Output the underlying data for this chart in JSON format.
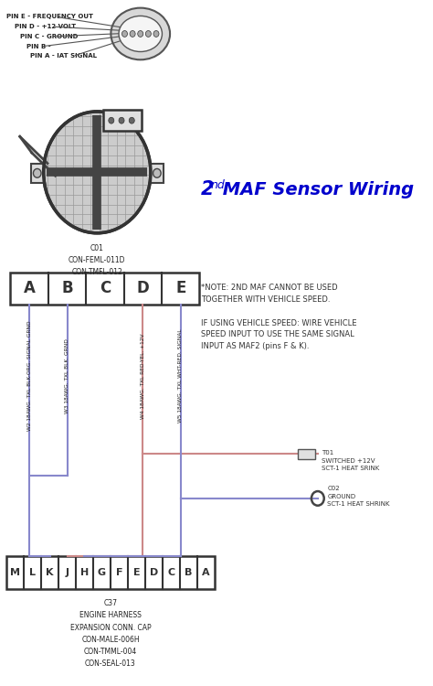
{
  "bg_color": "#ffffff",
  "top_connector_pins": [
    "PIN E - FREQUENCY OUT",
    "PIN D - +12 VOLT",
    "PIN C - GROUND",
    "PIN B -",
    "PIN A - IAT SIGNAL"
  ],
  "c01_label": "C01\nCON-FEML-011D\nCON-TMFL-012",
  "top_connector_cols": [
    "A",
    "B",
    "C",
    "D",
    "E"
  ],
  "bottom_connector_cols": [
    "M",
    "L",
    "K",
    "J",
    "H",
    "G",
    "F",
    "E",
    "D",
    "C",
    "B",
    "A"
  ],
  "c37_label": "C37\nENGINE HARNESS\nEXPANSION CONN. CAP\nCON-MALE-006H\nCON-TMML-004\nCON-SEAL-013",
  "wire_A_label": "W2 18AWG. TXL BLK-ORG. SIGNAL GRND",
  "wire_B_label": "W3 18AWG. TXL BLK. GRND",
  "wire_D_label": "W4 18AWG. TXL RED-YEL. +12V",
  "wire_E_label": "W5 18AWG. TXL WHT-RED. SIGNAL",
  "note_line1": "*NOTE: 2",
  "note_line1b": "ND",
  "note_line1c": " MAF CANNOT BE USED",
  "note_line2": "TOGETHER WITH VEHICLE SPEED.",
  "note_line3": "IF USING VEHICLE SPEED: WIRE VEHICLE",
  "note_line4": "SPEED INPUT TO USE THE SAME SIGNAL",
  "note_line5": "INPUT AS MAF2 (pins F & K).",
  "t01_label": "T01\nSWITCHED +12V\nSCT-1 HEAT SRINK",
  "c02_label": "C02\nGROUND\nSCT-1 HEAT SHRINK",
  "title_color": "#0000cc",
  "note_color": "#333333",
  "wire_blue": "#8888cc",
  "wire_red": "#cc8888",
  "diagram_gray": "#888888",
  "line_color": "#555555"
}
